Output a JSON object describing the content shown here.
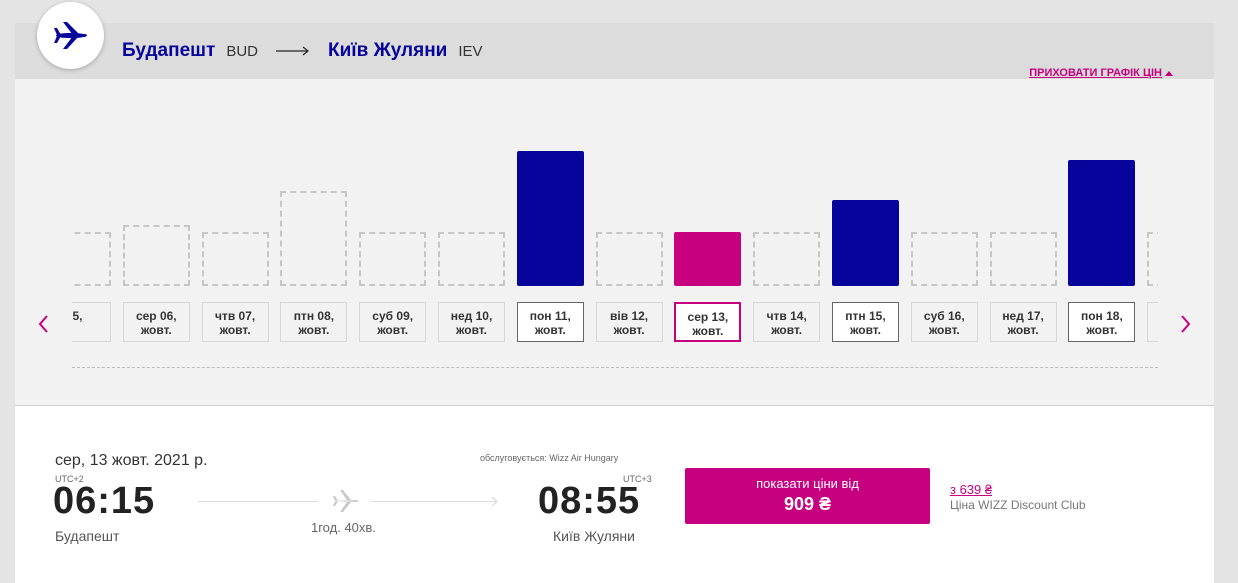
{
  "header": {
    "origin_city": "Будапешт",
    "origin_code": "BUD",
    "destination_city": "Київ Жуляни",
    "destination_code": "IEV",
    "hide_chart_label": "ПРИХОВАТИ ГРАФІК ЦІН"
  },
  "days": [
    {
      "label": "5,",
      "sub": "",
      "level": 0.4,
      "type": "empty"
    },
    {
      "label": "сер 06,",
      "sub": "жовт.",
      "level": 0.45,
      "type": "empty"
    },
    {
      "label": "чтв 07,",
      "sub": "жовт.",
      "level": 0.4,
      "type": "empty"
    },
    {
      "label": "птн 08,",
      "sub": "жовт.",
      "level": 0.7,
      "type": "empty"
    },
    {
      "label": "суб 09,",
      "sub": "жовт.",
      "level": 0.4,
      "type": "empty"
    },
    {
      "label": "нед 10,",
      "sub": "жовт.",
      "level": 0.4,
      "type": "empty"
    },
    {
      "label": "пон 11,",
      "sub": "жовт.",
      "level": 1.0,
      "type": "price"
    },
    {
      "label": "вів 12,",
      "sub": "жовт.",
      "level": 0.4,
      "type": "empty"
    },
    {
      "label": "сер 13,",
      "sub": "жовт.",
      "level": 0.4,
      "type": "selected"
    },
    {
      "label": "чтв 14,",
      "sub": "жовт.",
      "level": 0.4,
      "type": "empty"
    },
    {
      "label": "птн 15,",
      "sub": "жовт.",
      "level": 0.64,
      "type": "price"
    },
    {
      "label": "суб 16,",
      "sub": "жовт.",
      "level": 0.4,
      "type": "empty"
    },
    {
      "label": "нед 17,",
      "sub": "жовт.",
      "level": 0.4,
      "type": "empty"
    },
    {
      "label": "пон 18,",
      "sub": "жовт.",
      "level": 0.93,
      "type": "price"
    },
    {
      "label": "вів",
      "sub": "жо",
      "level": 0.4,
      "type": "empty"
    }
  ],
  "flight": {
    "date": "сер, 13 жовт. 2021 р.",
    "operated_by": "обслуговується: Wizz Air Hungary",
    "dep_tz": "UTC+2",
    "dep_time": "06:15",
    "dep_city": "Будапешт",
    "duration": "1год. 40хв.",
    "arr_tz": "UTC+3",
    "arr_time": "08:55",
    "arr_city": "Київ Жуляни",
    "price_label": "показати ціни від",
    "price_value": "909 ₴",
    "club_price": "з  639 ₴",
    "club_label": "Ціна WIZZ Discount Club"
  },
  "colors": {
    "brand_blue": "#06049a",
    "brand_magenta": "#c6007e"
  }
}
